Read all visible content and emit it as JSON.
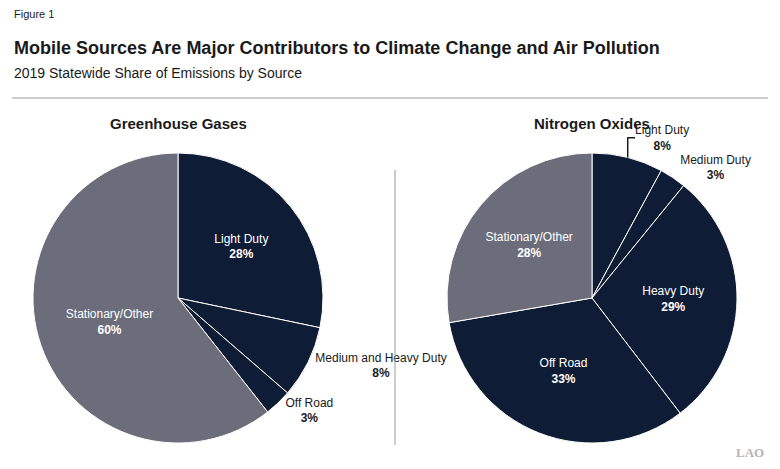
{
  "figure_label": "Figure 1",
  "title": "Mobile Sources Are Major Contributors to Climate Change and Air Pollution",
  "subtitle": "2019 Statewide Share of Emissions by Source",
  "logo": "LAO",
  "chart_data": [
    {
      "type": "pie",
      "title": "Greenhouse Gases",
      "categories": [
        "Light Duty",
        "Medium and Heavy Duty",
        "Off Road",
        "Stationary/Other"
      ],
      "values": [
        28,
        8,
        3,
        60
      ],
      "value_labels": [
        "28%",
        "8%",
        "3%",
        "60%"
      ],
      "colors": [
        "#0f1c35",
        "#0f1c35",
        "#0f1c35",
        "#6b6d7a"
      ],
      "data_labels": true
    },
    {
      "type": "pie",
      "title": "Nitrogen Oxides",
      "categories": [
        "Light Duty",
        "Medium Duty",
        "Heavy Duty",
        "Off Road",
        "Stationary/Other"
      ],
      "values": [
        8,
        3,
        29,
        33,
        28
      ],
      "value_labels": [
        "8%",
        "3%",
        "29%",
        "33%",
        "28%"
      ],
      "colors": [
        "#0f1c35",
        "#0f1c35",
        "#0f1c35",
        "#0f1c35",
        "#6b6d7a"
      ],
      "data_labels": true
    }
  ]
}
